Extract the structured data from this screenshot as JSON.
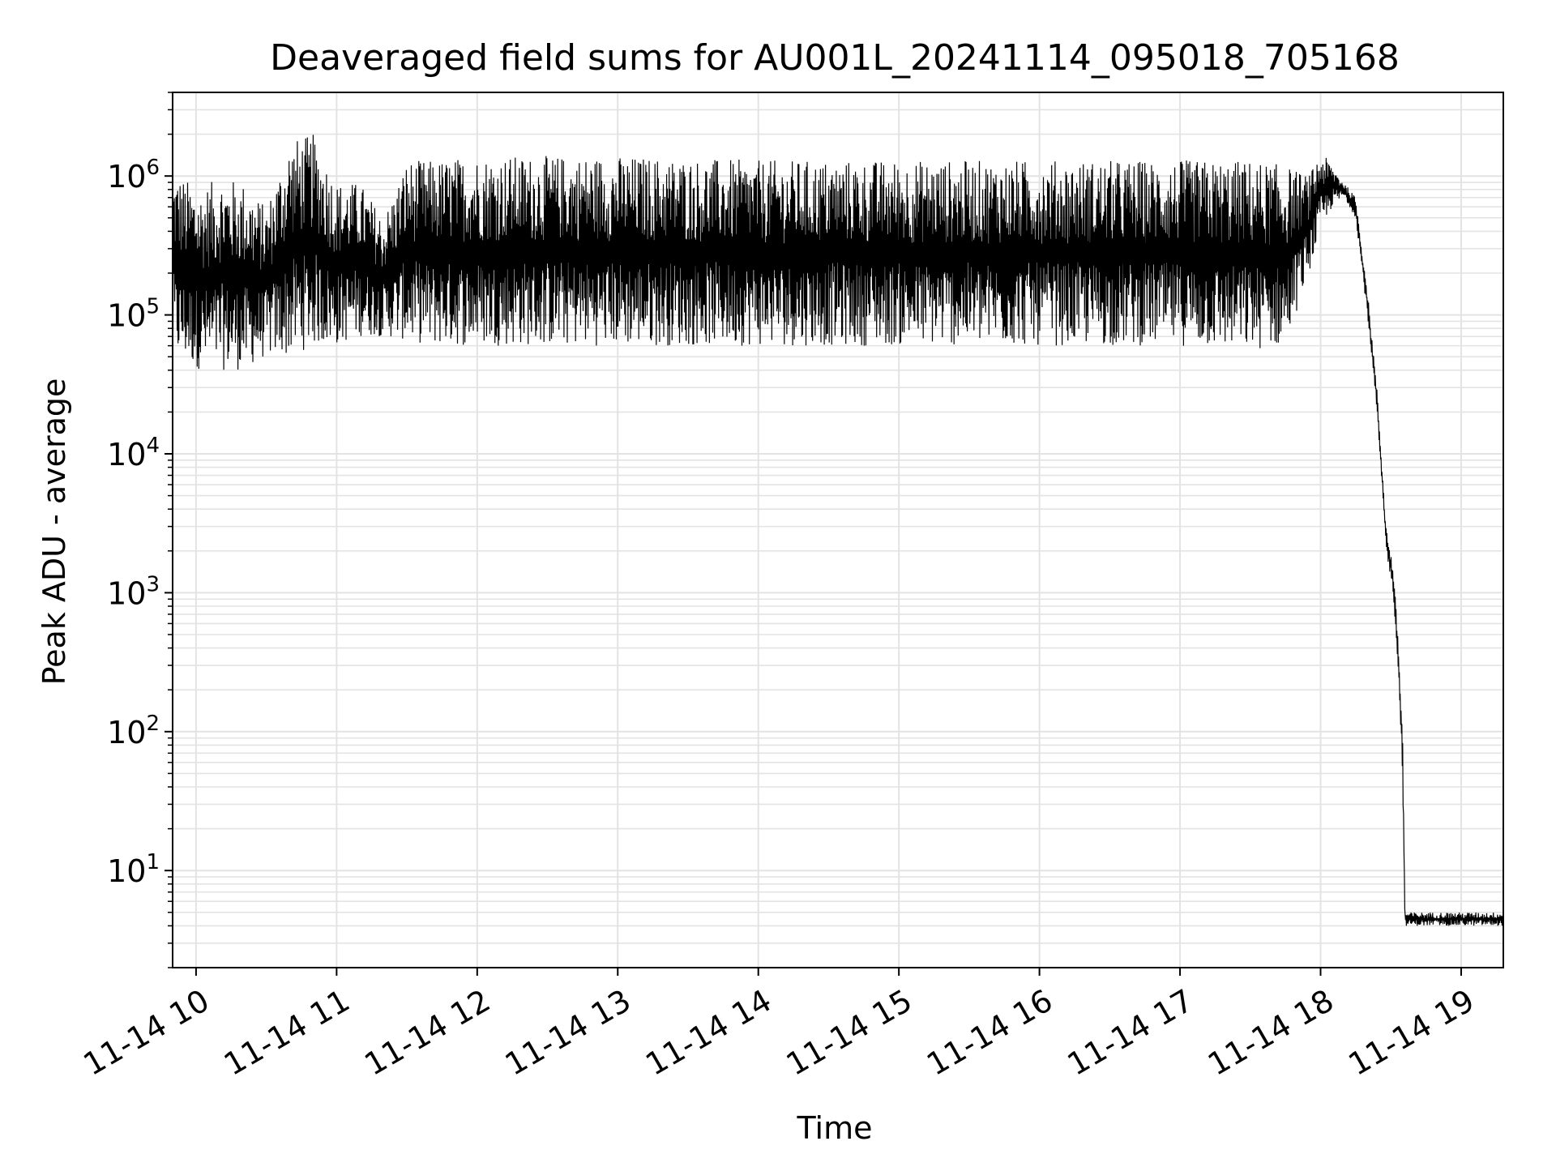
{
  "chart_data": {
    "type": "line",
    "title": "Deaveraged field sums for AU001L_20241114_095018_705168",
    "xlabel": "Time",
    "ylabel": "Peak ADU - average",
    "x_scale": "time",
    "y_scale": "log",
    "xlim": [
      "2024-11-14T09:50",
      "2024-11-14T19:18"
    ],
    "ylim": [
      2,
      4000000
    ],
    "grid": true,
    "legend": null,
    "line_color": "#000000",
    "x_ticks": [
      {
        "value": "2024-11-14T10:00",
        "label": "11-14 10"
      },
      {
        "value": "2024-11-14T11:00",
        "label": "11-14 11"
      },
      {
        "value": "2024-11-14T12:00",
        "label": "11-14 12"
      },
      {
        "value": "2024-11-14T13:00",
        "label": "11-14 13"
      },
      {
        "value": "2024-11-14T14:00",
        "label": "11-14 14"
      },
      {
        "value": "2024-11-14T15:00",
        "label": "11-14 15"
      },
      {
        "value": "2024-11-14T16:00",
        "label": "11-14 16"
      },
      {
        "value": "2024-11-14T17:00",
        "label": "11-14 17"
      },
      {
        "value": "2024-11-14T18:00",
        "label": "11-14 18"
      },
      {
        "value": "2024-11-14T19:00",
        "label": "11-14 19"
      }
    ],
    "y_ticks": [
      {
        "value": 10,
        "base": "10",
        "exp": "1"
      },
      {
        "value": 100,
        "base": "10",
        "exp": "2"
      },
      {
        "value": 1000,
        "base": "10",
        "exp": "3"
      },
      {
        "value": 10000,
        "base": "10",
        "exp": "4"
      },
      {
        "value": 100000,
        "base": "10",
        "exp": "5"
      },
      {
        "value": 1000000,
        "base": "10",
        "exp": "6"
      }
    ],
    "series": [
      {
        "x": [
          "2024-11-14T09:50",
          "2024-11-14T10:02",
          "2024-11-14T10:10",
          "2024-11-14T10:20",
          "2024-11-14T10:30",
          "2024-11-14T10:40",
          "2024-11-14T10:50",
          "2024-11-14T11:00",
          "2024-11-14T11:10",
          "2024-11-14T11:20",
          "2024-11-14T11:30",
          "2024-11-14T11:40",
          "2024-11-14T12:00",
          "2024-11-14T13:00",
          "2024-11-14T14:00",
          "2024-11-14T15:00",
          "2024-11-14T16:00",
          "2024-11-14T17:00",
          "2024-11-14T17:30",
          "2024-11-14T17:45",
          "2024-11-14T17:55",
          "2024-11-14T18:00",
          "2024-11-14T18:05",
          "2024-11-14T18:10",
          "2024-11-14T18:15",
          "2024-11-14T18:20",
          "2024-11-14T18:24",
          "2024-11-14T18:28",
          "2024-11-14T18:31",
          "2024-11-14T18:33",
          "2024-11-14T18:35",
          "2024-11-14T18:36",
          "2024-11-14T18:37",
          "2024-11-14T18:40",
          "2024-11-14T19:00",
          "2024-11-14T19:18"
        ],
        "y_low": [
          50000,
          40000,
          40000,
          40000,
          50000,
          50000,
          60000,
          60000,
          70000,
          70000,
          65000,
          60000,
          60000,
          60000,
          60000,
          60000,
          60000,
          60000,
          55000,
          60000,
          200000,
          400000,
          600000,
          700000,
          500000,
          100000,
          20000,
          2000,
          1000,
          300,
          50,
          4,
          4,
          4,
          4,
          4
        ],
        "y_high": [
          1100000,
          800000,
          1000000,
          900000,
          600000,
          1800000,
          2000000,
          900000,
          900000,
          500000,
          1300000,
          1300000,
          1400000,
          1400000,
          1300000,
          1300000,
          1300000,
          1300000,
          1300000,
          1200000,
          1000000,
          1500000,
          1200000,
          900000,
          700000,
          150000,
          30000,
          3000,
          1500,
          500,
          100,
          5,
          5,
          5,
          5,
          5
        ]
      }
    ]
  }
}
